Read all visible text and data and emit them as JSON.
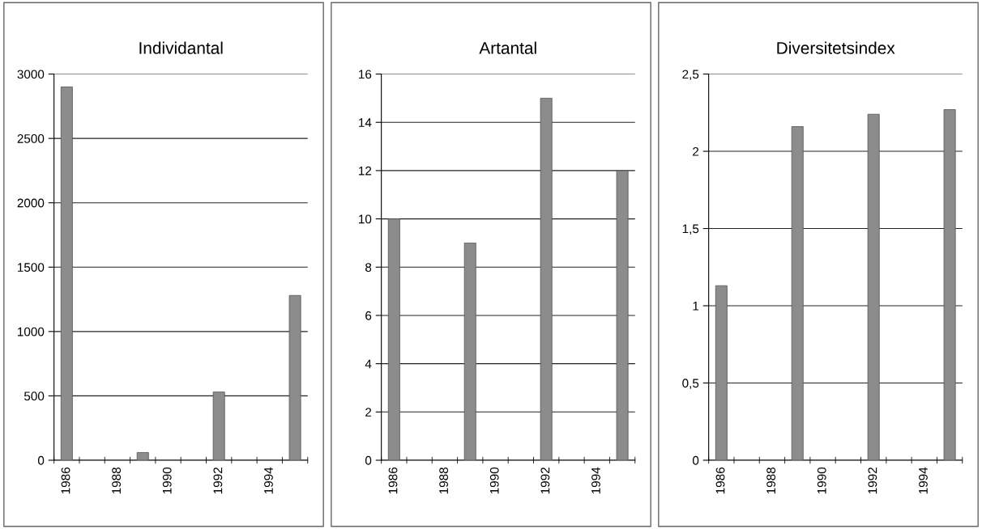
{
  "chart_data": [
    {
      "type": "bar",
      "title": "Individantal",
      "categories": [
        "1986",
        null,
        "1988",
        null,
        "1990",
        null,
        "1992",
        null,
        "1994",
        null
      ],
      "values": [
        2900,
        null,
        null,
        60,
        null,
        null,
        530,
        null,
        null,
        1280
      ],
      "color": "#8c8c8c",
      "ylim": [
        0,
        3000
      ],
      "yticks": [
        0,
        500,
        1000,
        1500,
        2000,
        2500,
        3000
      ],
      "grid": "y"
    },
    {
      "type": "bar",
      "title": "Artantal",
      "categories": [
        "1986",
        null,
        "1988",
        null,
        "1990",
        null,
        "1992",
        null,
        "1994",
        null
      ],
      "values": [
        10,
        null,
        null,
        9,
        null,
        null,
        15,
        null,
        null,
        12
      ],
      "color": "#8c8c8c",
      "ylim": [
        0,
        16
      ],
      "yticks": [
        0,
        2,
        4,
        6,
        8,
        10,
        12,
        14,
        16
      ],
      "grid": "y"
    },
    {
      "type": "bar",
      "title": "Diversitetsindex",
      "categories": [
        "1986",
        null,
        "1988",
        null,
        "1990",
        null,
        "1992",
        null,
        "1994",
        null
      ],
      "values": [
        1.13,
        null,
        null,
        2.16,
        null,
        null,
        2.24,
        null,
        null,
        2.27
      ],
      "color": "#8c8c8c",
      "ylim": [
        0,
        2.5
      ],
      "yticks": [
        0,
        {
          "value": 0.5,
          "label": "0,5"
        },
        1,
        {
          "value": 1.5,
          "label": "1,5"
        },
        2,
        {
          "value": 2.5,
          "label": "2,5"
        }
      ],
      "grid": "y"
    }
  ]
}
